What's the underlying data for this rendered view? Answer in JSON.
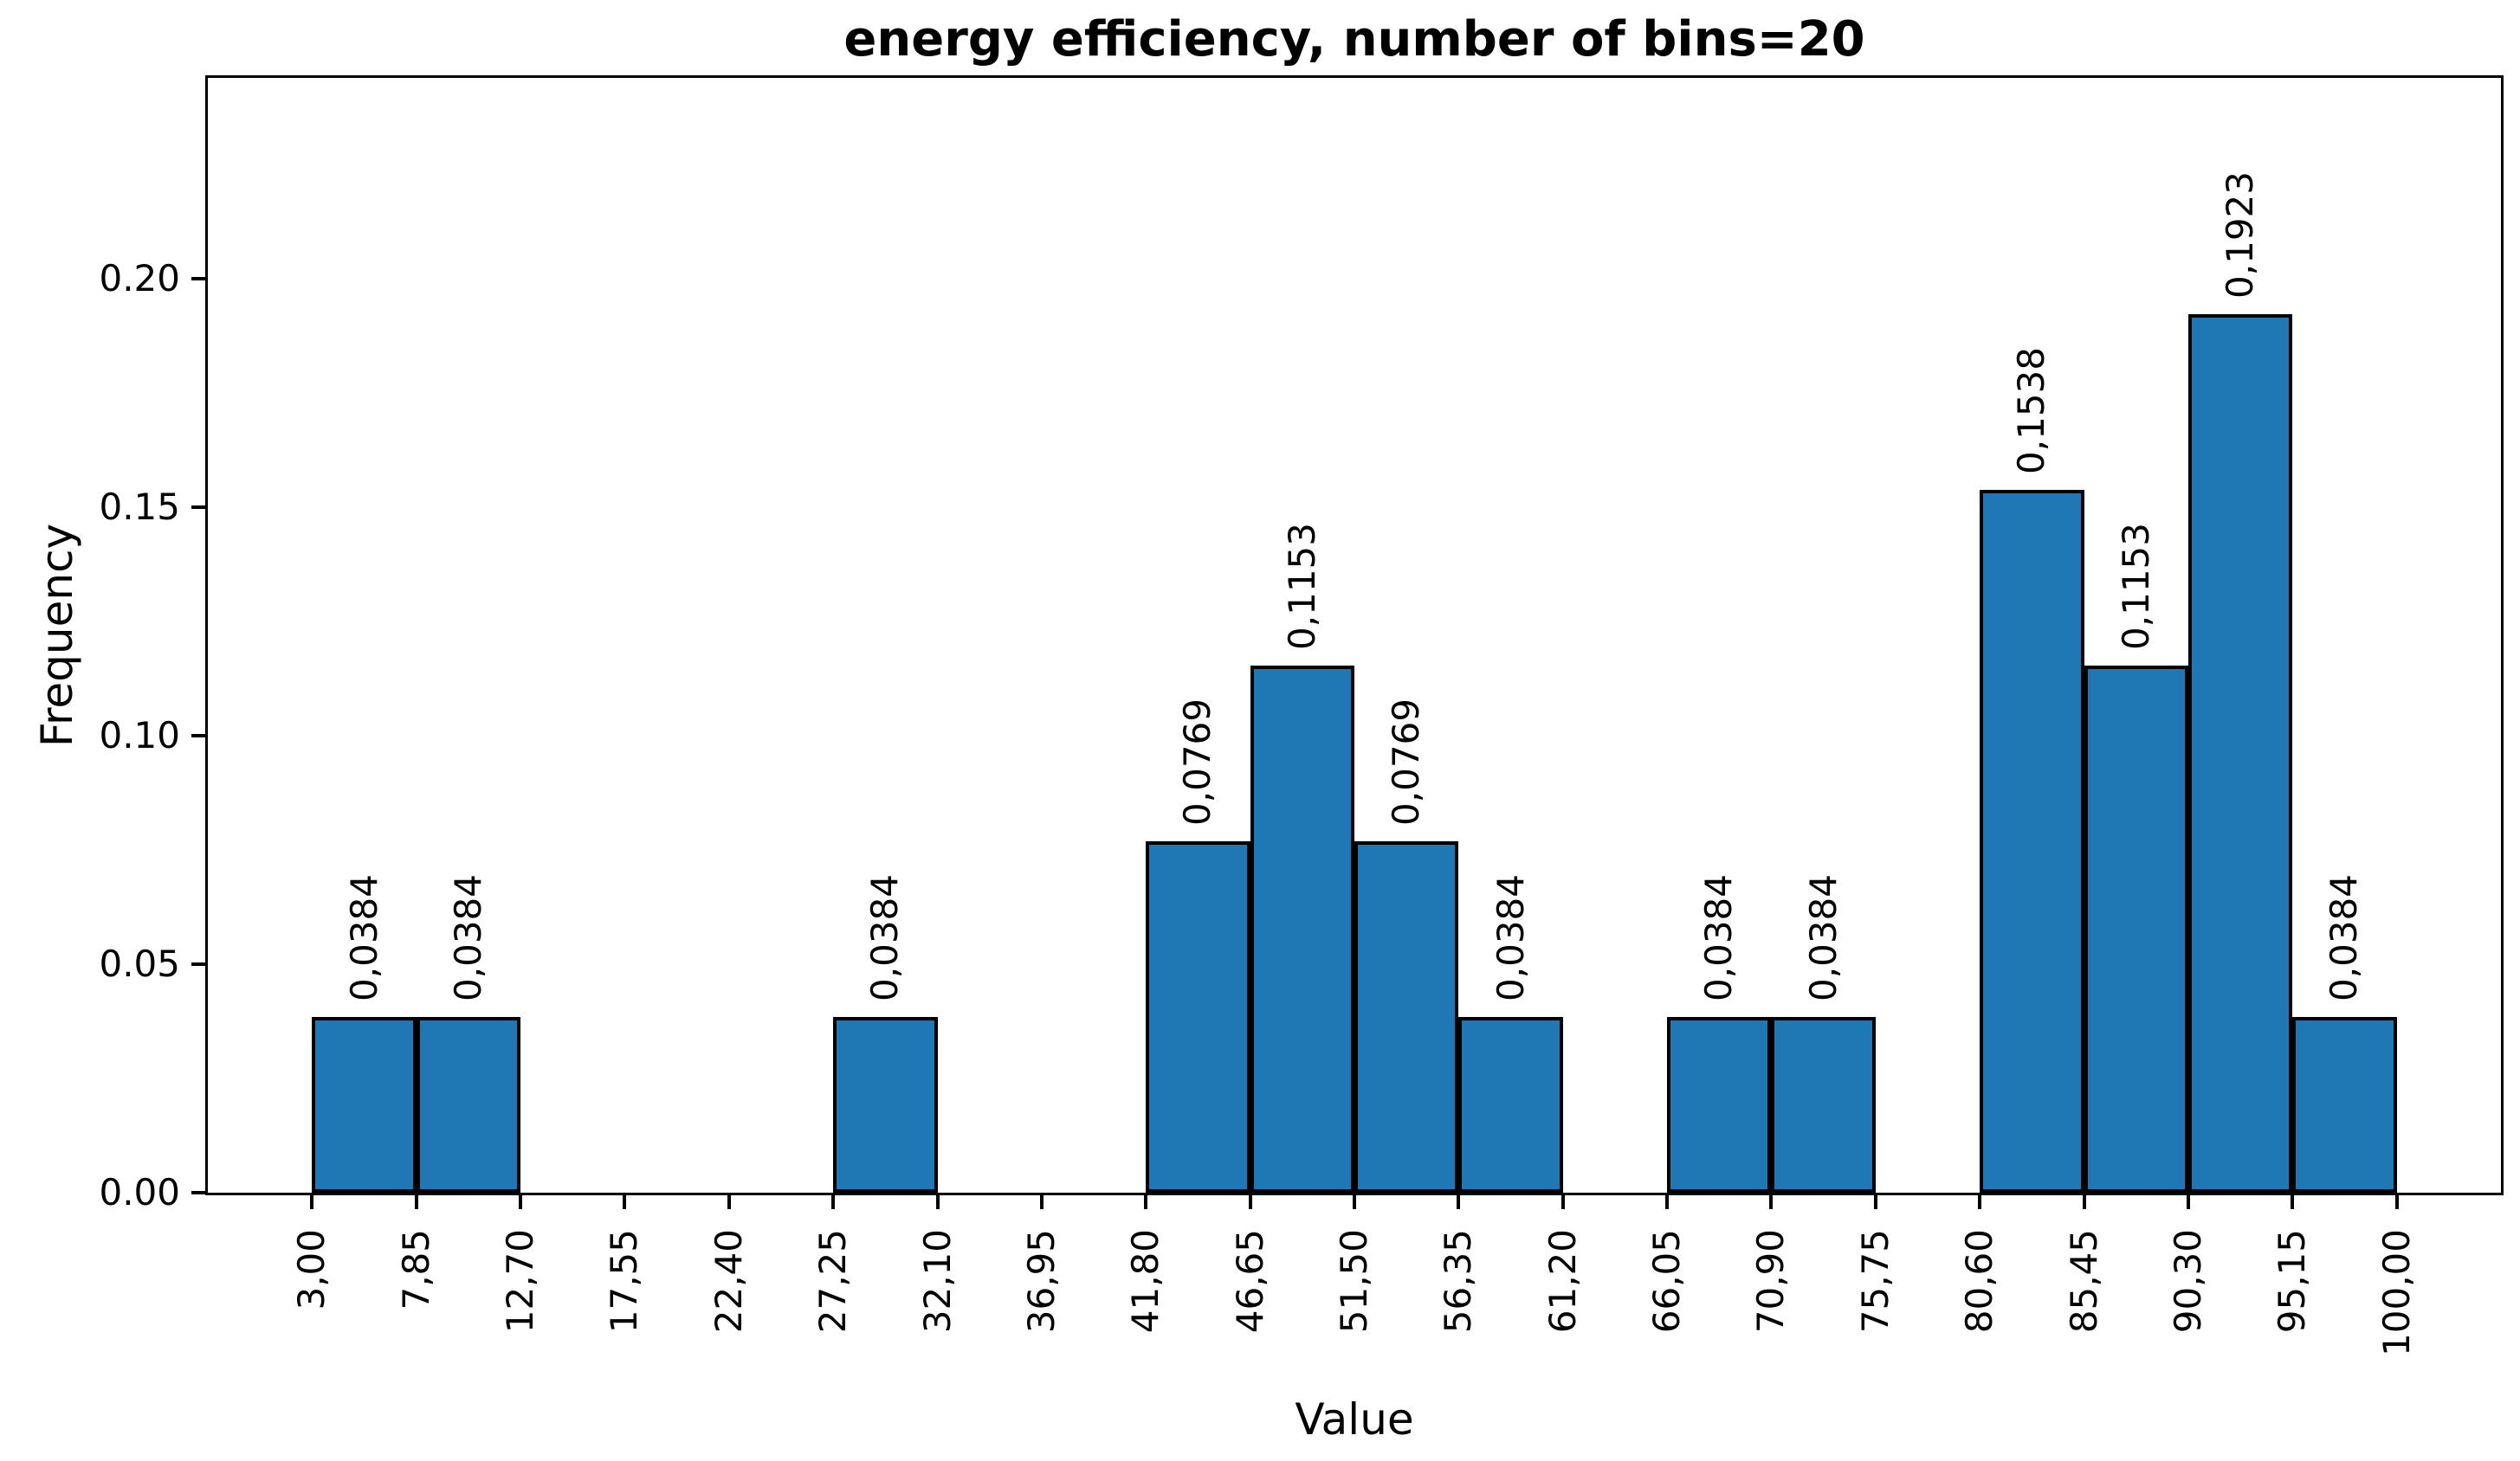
{
  "chart_data": {
    "type": "bar",
    "subtype": "histogram",
    "title": "energy efficiency, number of bins=20",
    "xlabel": "Value",
    "ylabel": "Frequency",
    "n_bins": 20,
    "bin_width": 4.85,
    "bin_edges": [
      3.0,
      7.85,
      12.7,
      17.55,
      22.4,
      27.25,
      32.1,
      36.95,
      41.8,
      46.65,
      51.5,
      56.35,
      61.2,
      66.05,
      70.9,
      75.75,
      80.6,
      85.45,
      90.3,
      95.15,
      100.0
    ],
    "x_tick_labels": [
      "3,00",
      "7,85",
      "12,70",
      "17,55",
      "22,40",
      "27,25",
      "32,10",
      "36,95",
      "41,80",
      "46,65",
      "51,50",
      "56,35",
      "61,20",
      "66,05",
      "70,90",
      "75,75",
      "80,60",
      "85,45",
      "90,30",
      "95,15",
      "100,00"
    ],
    "frequencies": [
      0.0384,
      0.0384,
      0,
      0,
      0,
      0.0384,
      0,
      0,
      0.0769,
      0.1153,
      0.0769,
      0.0384,
      0,
      0.0384,
      0.0384,
      0,
      0.1538,
      0.1153,
      0.1923,
      0.0384
    ],
    "bar_value_labels": [
      "0,0384",
      "0,0384",
      "",
      "",
      "",
      "0,0384",
      "",
      "",
      "0,0769",
      "0,1153",
      "0,0769",
      "0,0384",
      "",
      "0,0384",
      "0,0384",
      "",
      "0,1538",
      "0,1153",
      "0,1923",
      "0,0384"
    ],
    "y_ticks": [
      0,
      0.05,
      0.1,
      0.15,
      0.2
    ],
    "y_tick_labels": [
      "0.00",
      "0.05",
      "0.10",
      "0.15",
      "0.20"
    ],
    "xlim": [
      -1.85,
      104.85
    ],
    "ylim": [
      0,
      0.244
    ],
    "grid": false,
    "legend_position": "none",
    "bar_color": "#1f77b4",
    "bar_edge_color": "#000000",
    "text_color": "#000000",
    "background_color": "#ffffff"
  }
}
